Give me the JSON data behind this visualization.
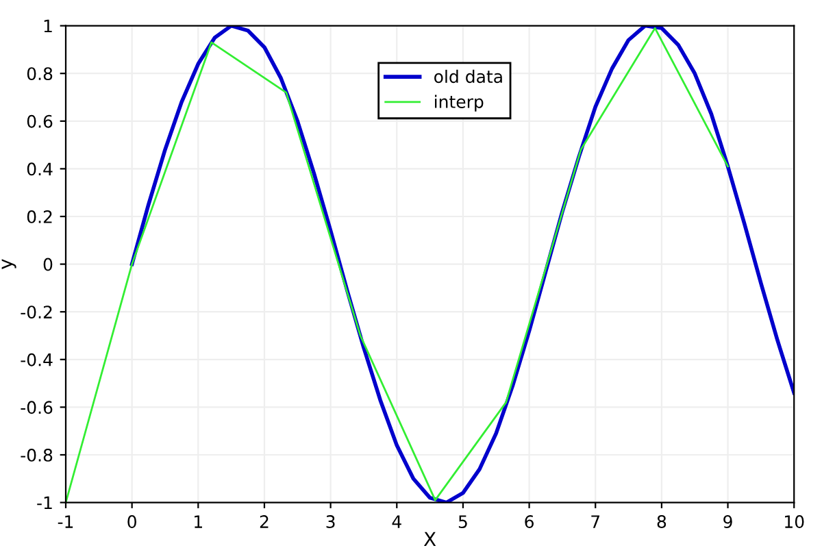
{
  "chart_data": {
    "type": "line",
    "xlabel": "X",
    "ylabel": "y",
    "xlim": [
      -1,
      10
    ],
    "ylim": [
      -1,
      1
    ],
    "xticks": [
      -1,
      0,
      1,
      2,
      3,
      4,
      5,
      6,
      7,
      8,
      9,
      10
    ],
    "yticks": [
      -1,
      -0.8,
      -0.6,
      -0.4,
      -0.2,
      0,
      0.2,
      0.4,
      0.6,
      0.8,
      1
    ],
    "grid": true,
    "legend": "top",
    "marker": "none",
    "line_style": "solid",
    "series": [
      {
        "name": "old data",
        "color": "#0000cc",
        "x": [
          0,
          0.25,
          0.5,
          0.75,
          1,
          1.25,
          1.5,
          1.75,
          2,
          2.25,
          2.5,
          2.75,
          3,
          3.25,
          3.5,
          3.75,
          4,
          4.25,
          4.5,
          4.75,
          5,
          5.25,
          5.5,
          5.75,
          6,
          6.25,
          6.5,
          6.75,
          7,
          7.25,
          7.5,
          7.75,
          8,
          8.25,
          8.5,
          8.75,
          9,
          9.25,
          9.5,
          9.75,
          10
        ],
        "values": [
          0,
          0.25,
          0.48,
          0.68,
          0.84,
          0.95,
          1.0,
          0.98,
          0.91,
          0.78,
          0.6,
          0.38,
          0.14,
          -0.11,
          -0.35,
          -0.57,
          -0.76,
          -0.9,
          -0.98,
          -1.0,
          -0.96,
          -0.86,
          -0.71,
          -0.51,
          -0.28,
          -0.03,
          0.22,
          0.45,
          0.66,
          0.82,
          0.94,
          1.0,
          0.99,
          0.92,
          0.8,
          0.63,
          0.41,
          0.17,
          -0.08,
          -0.32,
          -0.54
        ]
      },
      {
        "name": "interp",
        "color": "#33ee33",
        "x": [
          -1,
          0,
          1.2,
          2.33,
          3.45,
          4.58,
          5.65,
          6.78,
          7.9,
          9
        ],
        "values": [
          -1,
          0,
          0.93,
          0.72,
          -0.3,
          -0.99,
          -0.58,
          0.48,
          0.99,
          0.41
        ]
      }
    ]
  }
}
